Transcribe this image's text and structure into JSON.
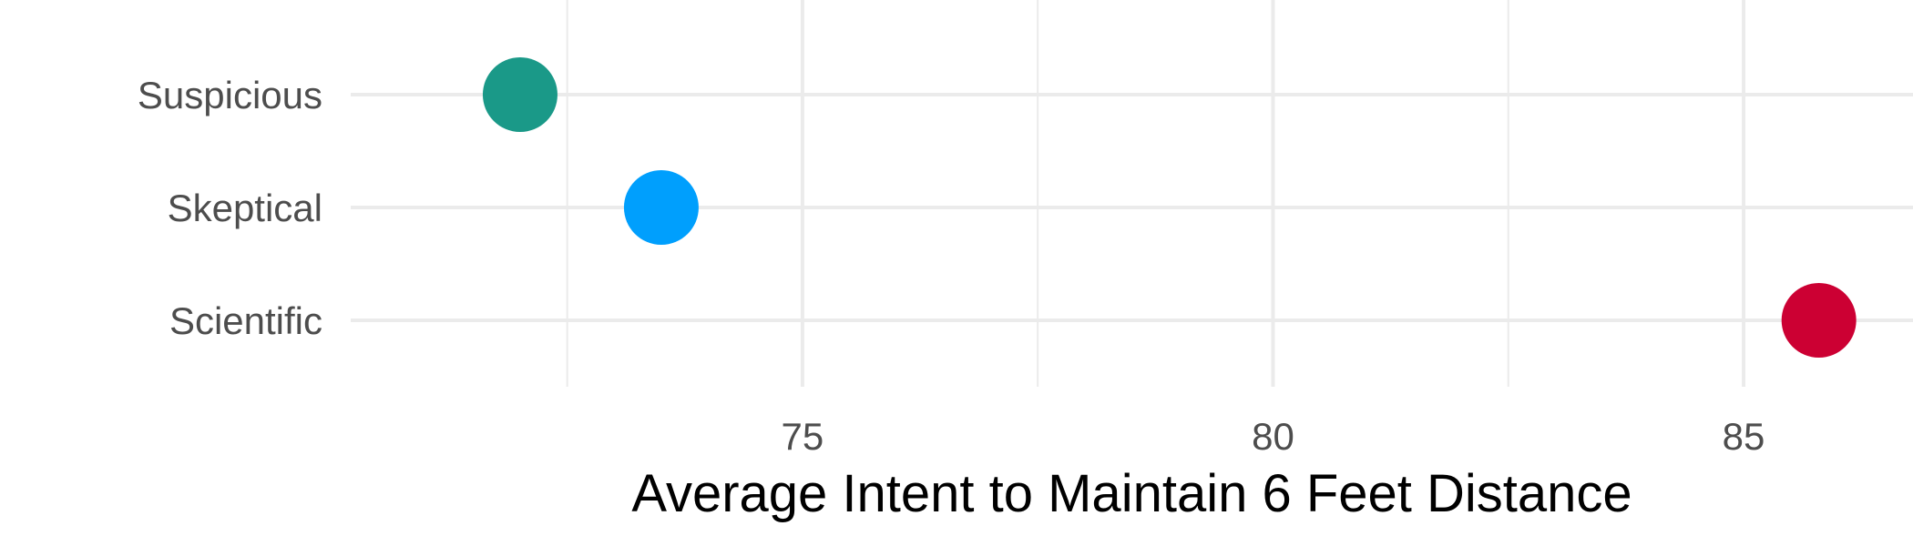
{
  "chart_data": {
    "type": "scatter",
    "orientation": "horizontal",
    "title": "",
    "xlabel": "Average Intent to Maintain 6 Feet Distance",
    "ylabel": "",
    "xlim": [
      70.2,
      86.8
    ],
    "x_ticks": [
      75,
      80,
      85
    ],
    "x_tick_labels": [
      "75",
      "80",
      "85"
    ],
    "categories": [
      "Suspicious",
      "Skeptical",
      "Scientific"
    ],
    "values": [
      72.0,
      73.5,
      85.8
    ],
    "colors": [
      "#1a9988",
      "#009ffd",
      "#cc0033"
    ],
    "grid": true,
    "legend": "none",
    "gridline_color": "#ebebeb"
  }
}
